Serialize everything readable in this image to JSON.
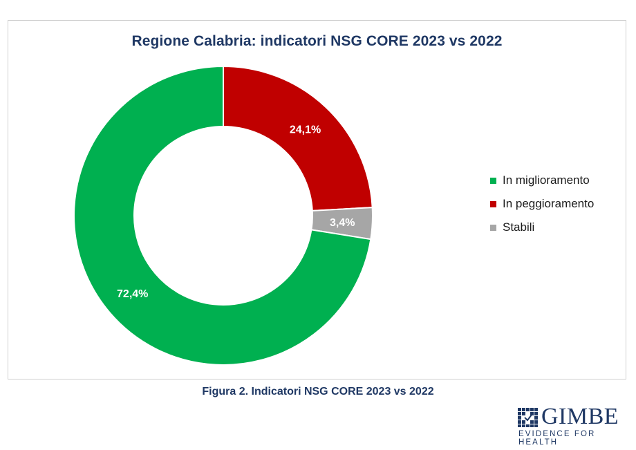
{
  "chart_data": {
    "type": "pie",
    "title": "Regione Calabria:  indicatori NSG CORE 2023 vs 2022",
    "categories": [
      "In peggioramento",
      "Stabili",
      "In miglioramento"
    ],
    "values": [
      24.1,
      3.4,
      72.4
    ],
    "value_labels": [
      "24,1%",
      "3,4%",
      "72,4%"
    ],
    "colors": [
      "#c00000",
      "#a6a6a6",
      "#00b050"
    ],
    "donut": true,
    "legend_position": "right",
    "legend": [
      {
        "label": "In miglioramento",
        "color": "#00b050"
      },
      {
        "label": "In peggioramento",
        "color": "#c00000"
      },
      {
        "label": "Stabili",
        "color": "#a6a6a6"
      }
    ]
  },
  "caption": "Figura 2. Indicatori NSG CORE 2023 vs 2022",
  "logo": {
    "name": "GIMBE",
    "tagline": "EVIDENCE FOR HEALTH",
    "color": "#1f3864"
  }
}
